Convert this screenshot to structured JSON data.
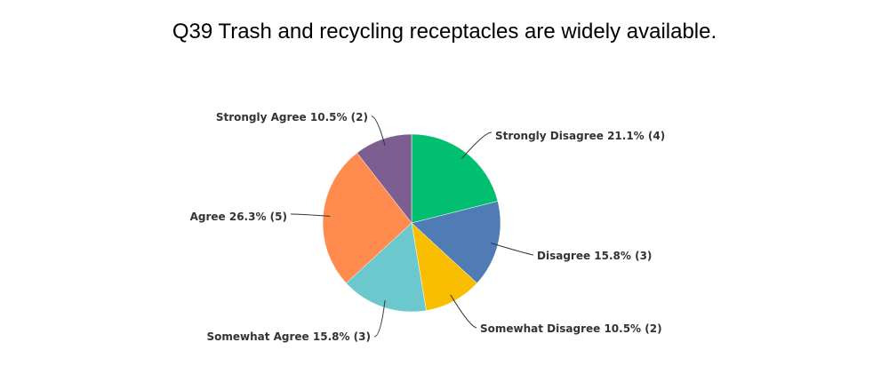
{
  "chart_data": {
    "type": "pie",
    "title": "Q39 Trash and recycling receptacles are widely available.",
    "slices": [
      {
        "label": "Strongly Disagree",
        "percent": "21.1%",
        "count": 4,
        "value": 4,
        "color": "#00bf6f"
      },
      {
        "label": "Disagree",
        "percent": "15.8%",
        "count": 3,
        "value": 3,
        "color": "#507cb6"
      },
      {
        "label": "Somewhat Disagree",
        "percent": "10.5%",
        "count": 2,
        "value": 2,
        "color": "#f9be00"
      },
      {
        "label": "Somewhat Agree",
        "percent": "15.8%",
        "count": 3,
        "value": 3,
        "color": "#6bc8cd"
      },
      {
        "label": "Agree",
        "percent": "26.3%",
        "count": 5,
        "value": 5,
        "color": "#ff8b4f"
      },
      {
        "label": "Strongly Agree",
        "percent": "10.5%",
        "count": 2,
        "value": 2,
        "color": "#7d5e90"
      }
    ],
    "slice_labels": [
      "Strongly Disagree 21.1% (4)",
      "Disagree 15.8% (3)",
      "Somewhat Disagree 10.5% (2)",
      "Somewhat Agree 15.8% (3)",
      "Agree 26.3% (5)",
      "Strongly Agree 10.5% (2)"
    ]
  }
}
